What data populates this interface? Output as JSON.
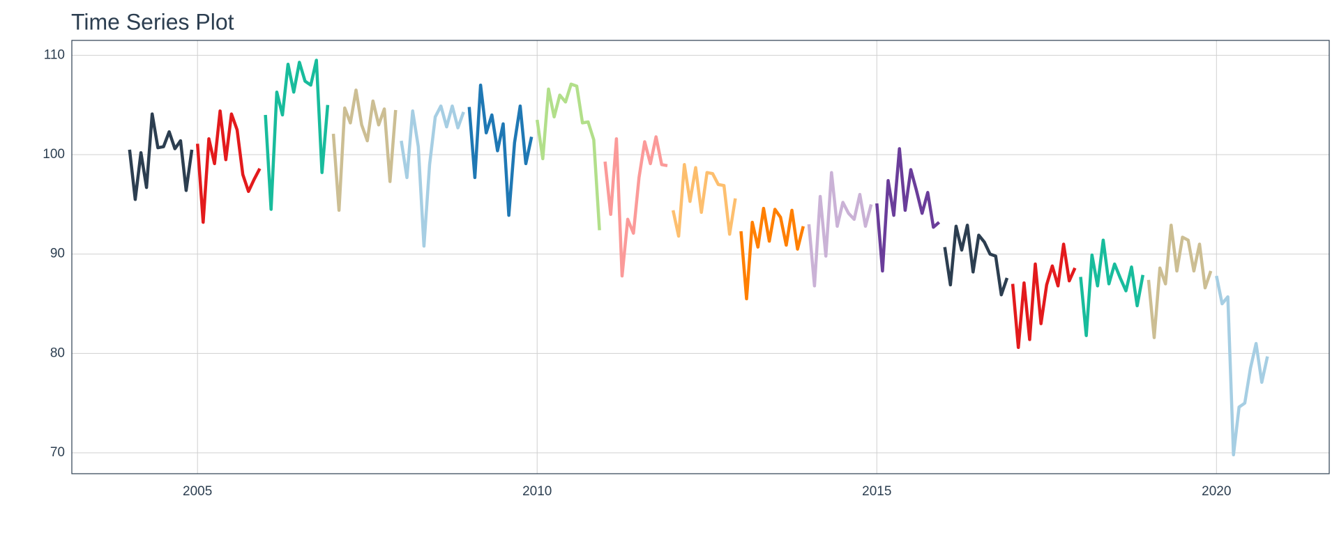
{
  "chart_data": {
    "type": "line",
    "title": "Time Series Plot",
    "xlim": [
      2003.15,
      2021.66
    ],
    "xticks": [
      2005,
      2010,
      2015,
      2020
    ],
    "ylim": [
      67.9,
      111.5
    ],
    "yticks": [
      70,
      80,
      90,
      100,
      110
    ],
    "grid": true,
    "series": [
      {
        "color": "#2c3e50",
        "x": [
          2004,
          2004.083,
          2004.167,
          2004.25,
          2004.333,
          2004.417,
          2004.5,
          2004.583,
          2004.667,
          2004.75,
          2004.833,
          2004.917
        ],
        "values": [
          100.5,
          95.5,
          100.2,
          96.7,
          104.1,
          100.7,
          100.8,
          102.3,
          100.6,
          101.4,
          96.4,
          100.5
        ]
      },
      {
        "color": "#e31a1c",
        "x": [
          2005,
          2005.083,
          2005.167,
          2005.25,
          2005.333,
          2005.417,
          2005.5,
          2005.583,
          2005.667,
          2005.75,
          2005.833,
          2005.917
        ],
        "values": [
          101.1,
          93.2,
          101.6,
          99.1,
          104.4,
          99.5,
          104.1,
          102.5,
          98,
          96.3,
          97.5,
          98.6
        ]
      },
      {
        "color": "#18bc9c",
        "x": [
          2006,
          2006.083,
          2006.167,
          2006.25,
          2006.333,
          2006.417,
          2006.5,
          2006.583,
          2006.667,
          2006.75,
          2006.833,
          2006.917
        ],
        "values": [
          104,
          94.5,
          106.3,
          104,
          109.1,
          106.3,
          109.3,
          107.4,
          107,
          109.5,
          98.2,
          105
        ]
      },
      {
        "color": "#ccbe93",
        "x": [
          2007,
          2007.083,
          2007.167,
          2007.25,
          2007.333,
          2007.417,
          2007.5,
          2007.583,
          2007.667,
          2007.75,
          2007.833,
          2007.917
        ],
        "values": [
          102.1,
          94.4,
          104.7,
          103.2,
          106.5,
          103,
          101.4,
          105.4,
          103,
          104.6,
          97.3,
          104.5
        ]
      },
      {
        "color": "#a6cee3",
        "x": [
          2008,
          2008.083,
          2008.167,
          2008.25,
          2008.333,
          2008.417,
          2008.5,
          2008.583,
          2008.667,
          2008.75,
          2008.833,
          2008.917
        ],
        "values": [
          101.4,
          97.7,
          104.4,
          100.8,
          90.8,
          99,
          103.8,
          104.9,
          102.8,
          104.9,
          102.7,
          104.3
        ]
      },
      {
        "color": "#1f78b4",
        "x": [
          2009,
          2009.083,
          2009.167,
          2009.25,
          2009.333,
          2009.417,
          2009.5,
          2009.583,
          2009.667,
          2009.75,
          2009.833,
          2009.917
        ],
        "values": [
          104.8,
          97.7,
          107,
          102.2,
          104,
          100.4,
          103.1,
          93.9,
          101.2,
          104.9,
          99.1,
          101.8
        ]
      },
      {
        "color": "#b2df8a",
        "x": [
          2010,
          2010.083,
          2010.167,
          2010.25,
          2010.333,
          2010.417,
          2010.5,
          2010.583,
          2010.667,
          2010.75,
          2010.833,
          2010.917
        ],
        "values": [
          103.5,
          99.6,
          106.6,
          103.8,
          106,
          105.3,
          107.1,
          106.9,
          103.2,
          103.3,
          101.5,
          92.4
        ]
      },
      {
        "color": "#fb9a99",
        "x": [
          2011,
          2011.083,
          2011.167,
          2011.25,
          2011.333,
          2011.417,
          2011.5,
          2011.583,
          2011.667,
          2011.75,
          2011.833,
          2011.917
        ],
        "values": [
          99.3,
          94,
          101.6,
          87.8,
          93.5,
          92.1,
          97.7,
          101.3,
          99.1,
          101.8,
          99,
          98.9
        ]
      },
      {
        "color": "#fdbf6f",
        "x": [
          2012,
          2012.083,
          2012.167,
          2012.25,
          2012.333,
          2012.417,
          2012.5,
          2012.583,
          2012.667,
          2012.75,
          2012.833,
          2012.917
        ],
        "values": [
          94.4,
          91.8,
          99,
          95.3,
          98.7,
          94.2,
          98.2,
          98.1,
          97,
          96.9,
          92,
          95.6
        ]
      },
      {
        "color": "#ff7f00",
        "x": [
          2013,
          2013.083,
          2013.167,
          2013.25,
          2013.333,
          2013.417,
          2013.5,
          2013.583,
          2013.667,
          2013.75,
          2013.833,
          2013.917
        ],
        "values": [
          92.3,
          85.5,
          93.2,
          90.7,
          94.6,
          91.3,
          94.5,
          93.7,
          90.9,
          94.4,
          90.5,
          92.8
        ]
      },
      {
        "color": "#cab2d6",
        "x": [
          2014,
          2014.083,
          2014.167,
          2014.25,
          2014.333,
          2014.417,
          2014.5,
          2014.583,
          2014.667,
          2014.75,
          2014.833,
          2014.917
        ],
        "values": [
          93,
          86.8,
          95.8,
          89.8,
          98.2,
          92.8,
          95.2,
          94.1,
          93.5,
          96,
          92.8,
          95
        ]
      },
      {
        "color": "#6a3d9a",
        "x": [
          2015,
          2015.083,
          2015.167,
          2015.25,
          2015.333,
          2015.417,
          2015.5,
          2015.583,
          2015.667,
          2015.75,
          2015.833,
          2015.917
        ],
        "values": [
          95.1,
          88.3,
          97.4,
          93.9,
          100.6,
          94.4,
          98.5,
          96.4,
          94.1,
          96.2,
          92.7,
          93.2
        ]
      },
      {
        "color": "#2c3e50",
        "x": [
          2016,
          2016.083,
          2016.167,
          2016.25,
          2016.333,
          2016.417,
          2016.5,
          2016.583,
          2016.667,
          2016.75,
          2016.833,
          2016.917
        ],
        "values": [
          90.7,
          86.9,
          92.8,
          90.4,
          92.9,
          88.2,
          91.9,
          91.2,
          90,
          89.8,
          85.9,
          87.6
        ]
      },
      {
        "color": "#e31a1c",
        "x": [
          2017,
          2017.083,
          2017.167,
          2017.25,
          2017.333,
          2017.417,
          2017.5,
          2017.583,
          2017.667,
          2017.75,
          2017.833,
          2017.917
        ],
        "values": [
          87,
          80.6,
          87.1,
          81.4,
          89,
          83,
          86.9,
          88.8,
          86.8,
          91,
          87.3,
          88.6
        ]
      },
      {
        "color": "#18bc9c",
        "x": [
          2018,
          2018.083,
          2018.167,
          2018.25,
          2018.333,
          2018.417,
          2018.5,
          2018.583,
          2018.667,
          2018.75,
          2018.833,
          2018.917
        ],
        "values": [
          87.7,
          81.8,
          89.9,
          86.8,
          91.4,
          87,
          89,
          87.6,
          86.3,
          88.7,
          84.8,
          87.9
        ]
      },
      {
        "color": "#ccbe93",
        "x": [
          2019,
          2019.083,
          2019.167,
          2019.25,
          2019.333,
          2019.417,
          2019.5,
          2019.583,
          2019.667,
          2019.75,
          2019.833,
          2019.917
        ],
        "values": [
          87.4,
          81.6,
          88.6,
          87,
          92.9,
          88.3,
          91.7,
          91.4,
          88.3,
          91,
          86.6,
          88.3
        ]
      },
      {
        "color": "#a6cee3",
        "x": [
          2020,
          2020.083,
          2020.167,
          2020.25,
          2020.333,
          2020.417,
          2020.5,
          2020.583,
          2020.667,
          2020.75
        ],
        "values": [
          87.8,
          85,
          85.7,
          69.8,
          74.6,
          75,
          78.5,
          81,
          77.1,
          79.7
        ]
      }
    ]
  }
}
